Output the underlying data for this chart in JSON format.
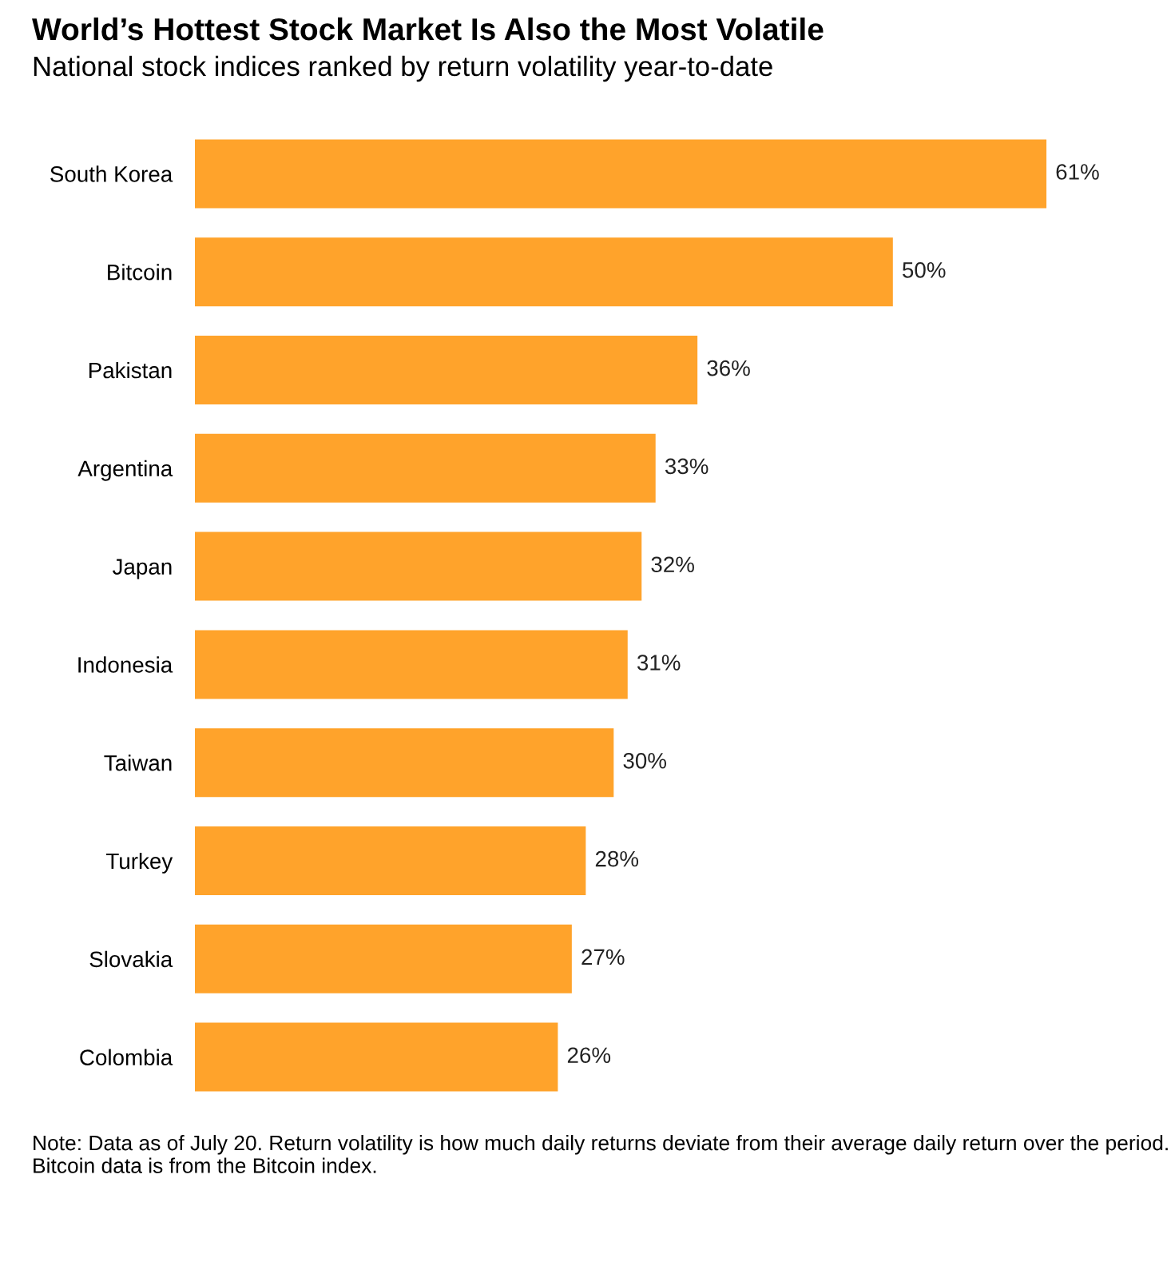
{
  "chart_data": {
    "type": "bar",
    "orientation": "horizontal",
    "title": "World’s Hottest Stock Market Is Also the Most Volatile",
    "subtitle": "National stock indices ranked by return volatility year-to-date",
    "categories": [
      "South Korea",
      "Bitcoin",
      "Pakistan",
      "Argentina",
      "Japan",
      "Indonesia",
      "Taiwan",
      "Turkey",
      "Slovakia",
      "Colombia"
    ],
    "values": [
      61,
      50,
      36,
      33,
      32,
      31,
      30,
      28,
      27,
      26
    ],
    "value_labels": [
      "61%",
      "50%",
      "36%",
      "33%",
      "32%",
      "31%",
      "30%",
      "28%",
      "27%",
      "26%"
    ],
    "color": "#ffa32b",
    "grid": false,
    "legend": false,
    "annotations": [
      "Note: Data as of July 20. Return volatility is how much daily returns deviate from their average daily return over the period. Bitcoin data is from the Bitcoin index."
    ]
  }
}
